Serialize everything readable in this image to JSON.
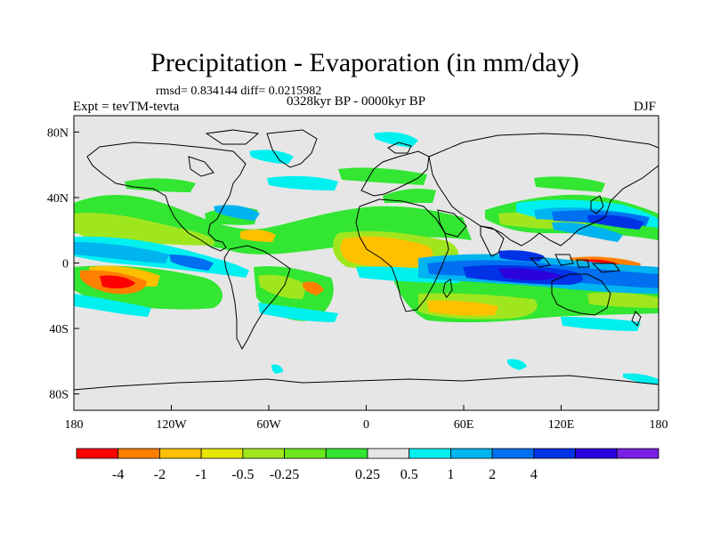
{
  "title": "Precipitation - Evaporation (in mm/day)",
  "stats": "rmsd= 0.834144 diff= 0.0215982",
  "left_label": "Expt = tevTM-tevta",
  "center_label": "0328kyr BP - 0000kyr BP",
  "right_label": "DJF",
  "x_ticks": [
    {
      "lon": -180,
      "label": "180"
    },
    {
      "lon": -120,
      "label": "120W"
    },
    {
      "lon": -60,
      "label": "60W"
    },
    {
      "lon": 0,
      "label": "0"
    },
    {
      "lon": 60,
      "label": "60E"
    },
    {
      "lon": 120,
      "label": "120E"
    },
    {
      "lon": 180,
      "label": "180"
    }
  ],
  "y_ticks": [
    {
      "lat": 80,
      "label": "80N"
    },
    {
      "lat": 40,
      "label": "40N"
    },
    {
      "lat": 0,
      "label": "0"
    },
    {
      "lat": -40,
      "label": "40S"
    },
    {
      "lat": -80,
      "label": "80S"
    }
  ],
  "colorbar": {
    "colors": [
      "#ff0000",
      "#ff8000",
      "#ffc000",
      "#e6e600",
      "#a0e61e",
      "#6ee61e",
      "#32e632",
      "#e6e6e6",
      "#00f0f0",
      "#00b4f0",
      "#0070f0",
      "#0032e6",
      "#2c00dc",
      "#7820e6"
    ],
    "labels": [
      "-4",
      "-2",
      "-1",
      "-0.5",
      "-0.25",
      "0.25",
      "0.5",
      "1",
      "2",
      "4"
    ]
  }
}
